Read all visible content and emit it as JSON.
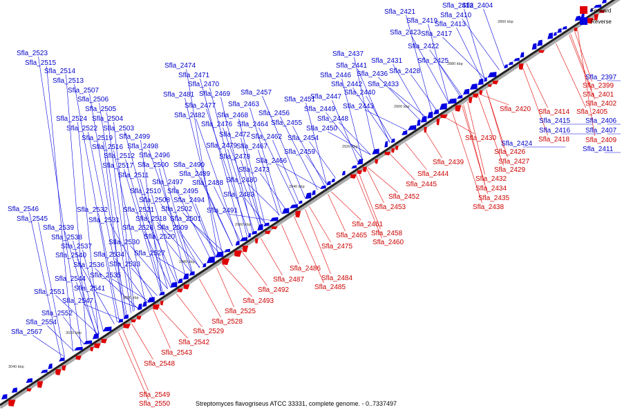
{
  "caption": "Streptomyces flavogriseus ATCC 33331, complete genome. - 0..7337497",
  "legend": [
    {
      "label": "Forward",
      "color": "#e00000"
    },
    {
      "label": "Reverse",
      "color": "#0000e0"
    }
  ],
  "colors": {
    "forward": "#e00000",
    "reverse": "#0000e0",
    "backbone": "#222222"
  },
  "axis_ticks": [
    "2860 kbp",
    "2880 kbp",
    "2900 kbp",
    "2920 kbp",
    "2940 kbp",
    "2960 kbp",
    "2980 kbp",
    "3000 kbp",
    "3020 kbp",
    "3040 kbp"
  ],
  "reverse_genes": [
    "Sfla_2404",
    "Sfla_2406",
    "Sfla_2407",
    "Sfla_2410",
    "Sfla_2411",
    "Sfla_2412",
    "Sfla_2413",
    "Sfla_2415",
    "Sfla_2416",
    "Sfla_2417",
    "Sfla_2419",
    "Sfla_2421",
    "Sfla_2422",
    "Sfla_2423",
    "Sfla_2424",
    "Sfla_2425",
    "Sfla_2428",
    "Sfla_2431",
    "Sfla_2433",
    "Sfla_2436",
    "Sfla_2437",
    "Sfla_2440",
    "Sfla_2441",
    "Sfla_2442",
    "Sfla_2443",
    "Sfla_2446",
    "Sfla_2447",
    "Sfla_2448",
    "Sfla_2449",
    "Sfla_2450",
    "Sfla_2451",
    "Sfla_2454",
    "Sfla_2455",
    "Sfla_2456",
    "Sfla_2457",
    "Sfla_2459",
    "Sfla_2462",
    "Sfla_2463",
    "Sfla_2464",
    "Sfla_2466",
    "Sfla_2467",
    "Sfla_2468",
    "Sfla_2469",
    "Sfla_2470",
    "Sfla_2471",
    "Sfla_2472",
    "Sfla_2473",
    "Sfla_2474",
    "Sfla_2476",
    "Sfla_2477",
    "Sfla_2478",
    "Sfla_2479",
    "Sfla_2480",
    "Sfla_2481",
    "Sfla_2482",
    "Sfla_2483",
    "Sfla_2488",
    "Sfla_2489",
    "Sfla_2490",
    "Sfla_2491",
    "Sfla_2494",
    "Sfla_2495",
    "Sfla_2496",
    "Sfla_2497",
    "Sfla_2498",
    "Sfla_2499",
    "Sfla_2500",
    "Sfla_2501",
    "Sfla_2502",
    "Sfla_2503",
    "Sfla_2504",
    "Sfla_2505",
    "Sfla_2506",
    "Sfla_2507",
    "Sfla_2508",
    "Sfla_2509",
    "Sfla_2510",
    "Sfla_2511",
    "Sfla_2512",
    "Sfla_2513",
    "Sfla_2514",
    "Sfla_2515",
    "Sfla_2516",
    "Sfla_2517",
    "Sfla_2518",
    "Sfla_2519",
    "Sfla_2520",
    "Sfla_2521",
    "Sfla_2522",
    "Sfla_2523",
    "Sfla_2524",
    "Sfla_2526",
    "Sfla_2527",
    "Sfla_2530",
    "Sfla_2531",
    "Sfla_2532",
    "Sfla_2533",
    "Sfla_2534",
    "Sfla_2535",
    "Sfla_2536",
    "Sfla_2537",
    "Sfla_2538",
    "Sfla_2539",
    "Sfla_2540",
    "Sfla_2541",
    "Sfla_2544",
    "Sfla_2545",
    "Sfla_2546",
    "Sfla_2547",
    "Sfla_2551",
    "Sfla_2552",
    "Sfla_2554",
    "Sfla_2567",
    "Sfla_2397"
  ],
  "forward_genes": [
    "Sfla_2399",
    "Sfla_2401",
    "Sfla_2402",
    "Sfla_2405",
    "Sfla_2409",
    "Sfla_2414",
    "Sfla_2418",
    "Sfla_2420",
    "Sfla_2426",
    "Sfla_2427",
    "Sfla_2429",
    "Sfla_2430",
    "Sfla_2432",
    "Sfla_2434",
    "Sfla_2435",
    "Sfla_2438",
    "Sfla_2439",
    "Sfla_2444",
    "Sfla_2445",
    "Sfla_2452",
    "Sfla_2453",
    "Sfla_2458",
    "Sfla_2460",
    "Sfla_2461",
    "Sfla_2465",
    "Sfla_2475",
    "Sfla_2484",
    "Sfla_2485",
    "Sfla_2486",
    "Sfla_2487",
    "Sfla_2492",
    "Sfla_2493",
    "Sfla_2525",
    "Sfla_2528",
    "Sfla_2529",
    "Sfla_2542",
    "Sfla_2543",
    "Sfla_2548",
    "Sfla_2549",
    "Sfla_2550"
  ]
}
